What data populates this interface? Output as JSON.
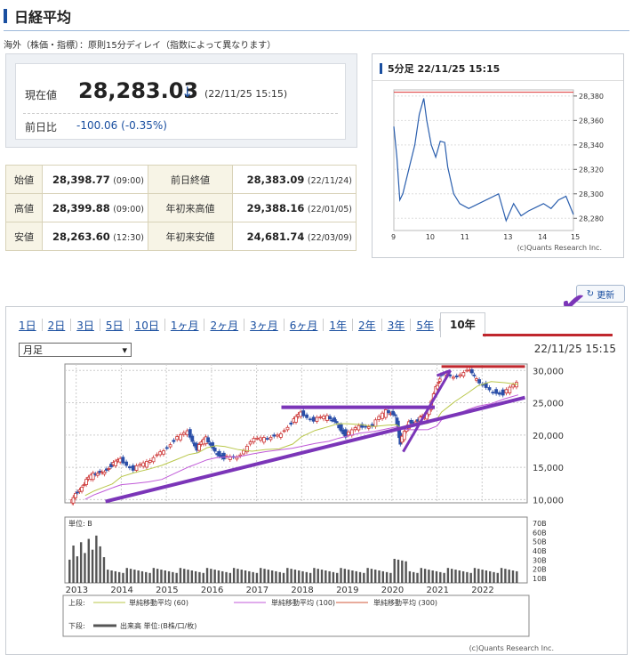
{
  "header": {
    "title": "日経平均"
  },
  "note": "海外（株価・指標）：原則15分ディレイ（指数によって異なります）",
  "price": {
    "label": "現在値",
    "value": "28,283.03",
    "arrow": "↓",
    "timestamp": "(22/11/25 15:15)",
    "prev_label": "前日比",
    "change": "-100.06 (-0.35%)"
  },
  "table": {
    "rows": [
      {
        "h1": "始値",
        "v1": "28,398.77",
        "t1": "(09:00)",
        "h2": "前日終値",
        "v2": "28,383.09",
        "t2": "(22/11/24)"
      },
      {
        "h1": "高値",
        "v1": "28,399.88",
        "t1": "(09:00)",
        "h2": "年初来高値",
        "v2": "29,388.16",
        "t2": "(22/01/05)"
      },
      {
        "h1": "安値",
        "v1": "28,263.60",
        "t1": "(12:30)",
        "h2": "年初来安値",
        "v2": "24,681.74",
        "t2": "(22/03/09)"
      }
    ]
  },
  "intraday": {
    "title": "5分足 22/11/25 15:15",
    "credit": "(c)Quants Research Inc.",
    "chart_data": {
      "type": "line",
      "x_ticks": [
        "9",
        "10",
        "11",
        "13",
        "14",
        "15"
      ],
      "y_ticks": [
        "28,380",
        "28,360",
        "28,340",
        "28,320",
        "28,300",
        "28,280"
      ],
      "ylim": [
        28270,
        28385
      ],
      "reference_line": 28383.09,
      "x": [
        9.0,
        9.1,
        9.2,
        9.3,
        9.5,
        9.7,
        9.85,
        10.0,
        10.1,
        10.25,
        10.4,
        10.55,
        10.7,
        10.8,
        11.0,
        11.2,
        11.5,
        12.5,
        12.75,
        13.0,
        13.25,
        13.5,
        13.75,
        14.0,
        14.25,
        14.5,
        14.75,
        15.0
      ],
      "values": [
        28355,
        28330,
        28295,
        28300,
        28320,
        28340,
        28365,
        28378,
        28360,
        28340,
        28330,
        28343,
        28342,
        28322,
        28300,
        28292,
        28288,
        28300,
        28278,
        28292,
        28282,
        28286,
        28289,
        28292,
        28288,
        28295,
        28298,
        28283
      ]
    }
  },
  "reload_label": "更新",
  "tabs": [
    "1日",
    "2日",
    "3日",
    "5日",
    "10日",
    "1ヶ月",
    "2ヶ月",
    "3ヶ月",
    "6ヶ月",
    "1年",
    "2年",
    "3年",
    "5年",
    "10年"
  ],
  "period_select": "月足",
  "long_chart": {
    "timestamp": "22/11/25 15:15",
    "credit": "(c)Quants Research Inc.",
    "volume_unit": "単位: B",
    "legend": {
      "upper": "上段:",
      "ma60": "単純移動平均 (60)",
      "ma100": "単純移動平均 (100)",
      "ma300": "単純移動平均 (300)",
      "lower": "下段:",
      "volume": "出来高 単位:(B株/口/枚)"
    },
    "chart_data": {
      "type": "line",
      "x_ticks": [
        "2013",
        "2014",
        "2015",
        "2016",
        "2017",
        "2018",
        "2019",
        "2020",
        "2021",
        "2022"
      ],
      "y_ticks": [
        "30,000",
        "25,000",
        "20,000",
        "15,000",
        "10,000"
      ],
      "vol_ticks": [
        "70B",
        "60B",
        "50B",
        "40B",
        "30B",
        "20B",
        "10B"
      ],
      "ylim": [
        9500,
        31000
      ],
      "x": [
        2012.9,
        2013.0,
        2013.2,
        2013.4,
        2013.6,
        2013.8,
        2014.0,
        2014.3,
        2014.6,
        2014.9,
        2015.2,
        2015.5,
        2015.7,
        2015.9,
        2016.1,
        2016.3,
        2016.6,
        2016.9,
        2017.2,
        2017.5,
        2017.8,
        2018.0,
        2018.3,
        2018.6,
        2018.8,
        2019.0,
        2019.3,
        2019.6,
        2019.9,
        2020.1,
        2020.2,
        2020.4,
        2020.6,
        2020.8,
        2021.0,
        2021.1,
        2021.4,
        2021.7,
        2021.9,
        2022.2,
        2022.5,
        2022.8
      ],
      "values": [
        9500,
        10800,
        12500,
        13800,
        14300,
        15400,
        16200,
        14700,
        15600,
        17400,
        19300,
        20500,
        17800,
        19400,
        17500,
        16600,
        16400,
        19100,
        19300,
        20000,
        22000,
        23400,
        22300,
        22700,
        21900,
        20000,
        21300,
        21500,
        23600,
        23000,
        18900,
        21900,
        22300,
        23000,
        27500,
        29500,
        28800,
        30200,
        28400,
        27000,
        26500,
        28000
      ]
    }
  },
  "annotations": {
    "colors": {
      "purple": "#7b35b8",
      "red": "#c0272d"
    }
  }
}
